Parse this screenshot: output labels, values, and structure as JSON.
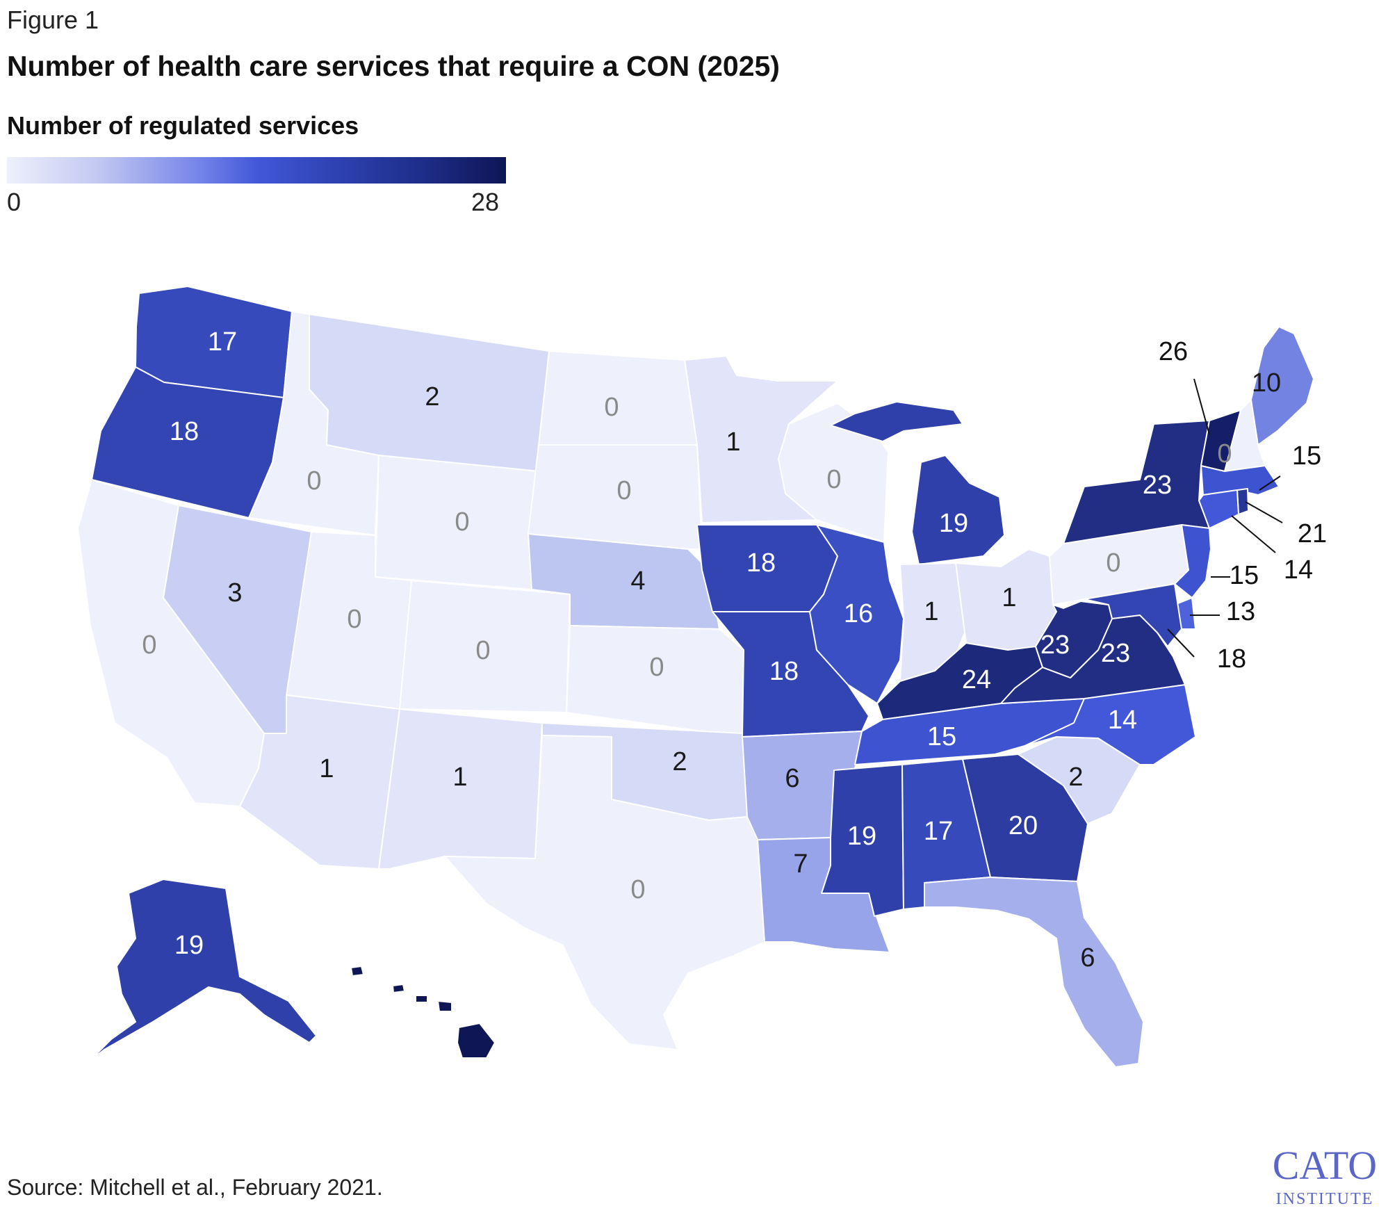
{
  "figure_label": "Figure 1",
  "title": "Number of health care services that require a CON (2025)",
  "legend": {
    "title": "Number of regulated services",
    "min_label": "0",
    "max_label": "28",
    "min": 0,
    "max": 28,
    "color_low": "#eef0fb",
    "color_mid": "#4258d8",
    "color_high": "#0e1656"
  },
  "source": "Source: Mitchell et al., February 2021.",
  "logo": {
    "line1": "CATO",
    "line2": "INSTITUTE"
  },
  "states": [
    {
      "id": "WA",
      "value": "17"
    },
    {
      "id": "OR",
      "value": "18"
    },
    {
      "id": "CA",
      "value": "0"
    },
    {
      "id": "ID",
      "value": "0"
    },
    {
      "id": "NV",
      "value": "3"
    },
    {
      "id": "MT",
      "value": "2"
    },
    {
      "id": "WY",
      "value": "0"
    },
    {
      "id": "UT",
      "value": "0"
    },
    {
      "id": "AZ",
      "value": "1"
    },
    {
      "id": "CO",
      "value": "0"
    },
    {
      "id": "NM",
      "value": "1"
    },
    {
      "id": "ND",
      "value": "0"
    },
    {
      "id": "SD",
      "value": "0"
    },
    {
      "id": "NE",
      "value": "4"
    },
    {
      "id": "KS",
      "value": "0"
    },
    {
      "id": "OK",
      "value": "2"
    },
    {
      "id": "TX",
      "value": "0"
    },
    {
      "id": "MN",
      "value": "1"
    },
    {
      "id": "IA",
      "value": "18"
    },
    {
      "id": "MO",
      "value": "18"
    },
    {
      "id": "AR",
      "value": "6"
    },
    {
      "id": "LA",
      "value": "7"
    },
    {
      "id": "WI",
      "value": "0"
    },
    {
      "id": "IL",
      "value": "16"
    },
    {
      "id": "MI",
      "value": "19"
    },
    {
      "id": "IN",
      "value": "1"
    },
    {
      "id": "OH",
      "value": "1"
    },
    {
      "id": "KY",
      "value": "24"
    },
    {
      "id": "TN",
      "value": "15"
    },
    {
      "id": "MS",
      "value": "19"
    },
    {
      "id": "AL",
      "value": "17"
    },
    {
      "id": "GA",
      "value": "20"
    },
    {
      "id": "FL",
      "value": "6"
    },
    {
      "id": "SC",
      "value": "2"
    },
    {
      "id": "NC",
      "value": "14"
    },
    {
      "id": "VA",
      "value": "23"
    },
    {
      "id": "WV",
      "value": "23"
    },
    {
      "id": "PA",
      "value": "0"
    },
    {
      "id": "NY",
      "value": "23"
    },
    {
      "id": "VT",
      "value": "26"
    },
    {
      "id": "NH",
      "value": "0"
    },
    {
      "id": "ME",
      "value": "10"
    },
    {
      "id": "MA",
      "value": "15"
    },
    {
      "id": "RI",
      "value": "21"
    },
    {
      "id": "CT",
      "value": "14"
    },
    {
      "id": "NJ",
      "value": "15"
    },
    {
      "id": "DE",
      "value": "13"
    },
    {
      "id": "MD",
      "value": "18"
    },
    {
      "id": "AK",
      "value": "19"
    },
    {
      "id": "HI",
      "value": "28"
    }
  ]
}
